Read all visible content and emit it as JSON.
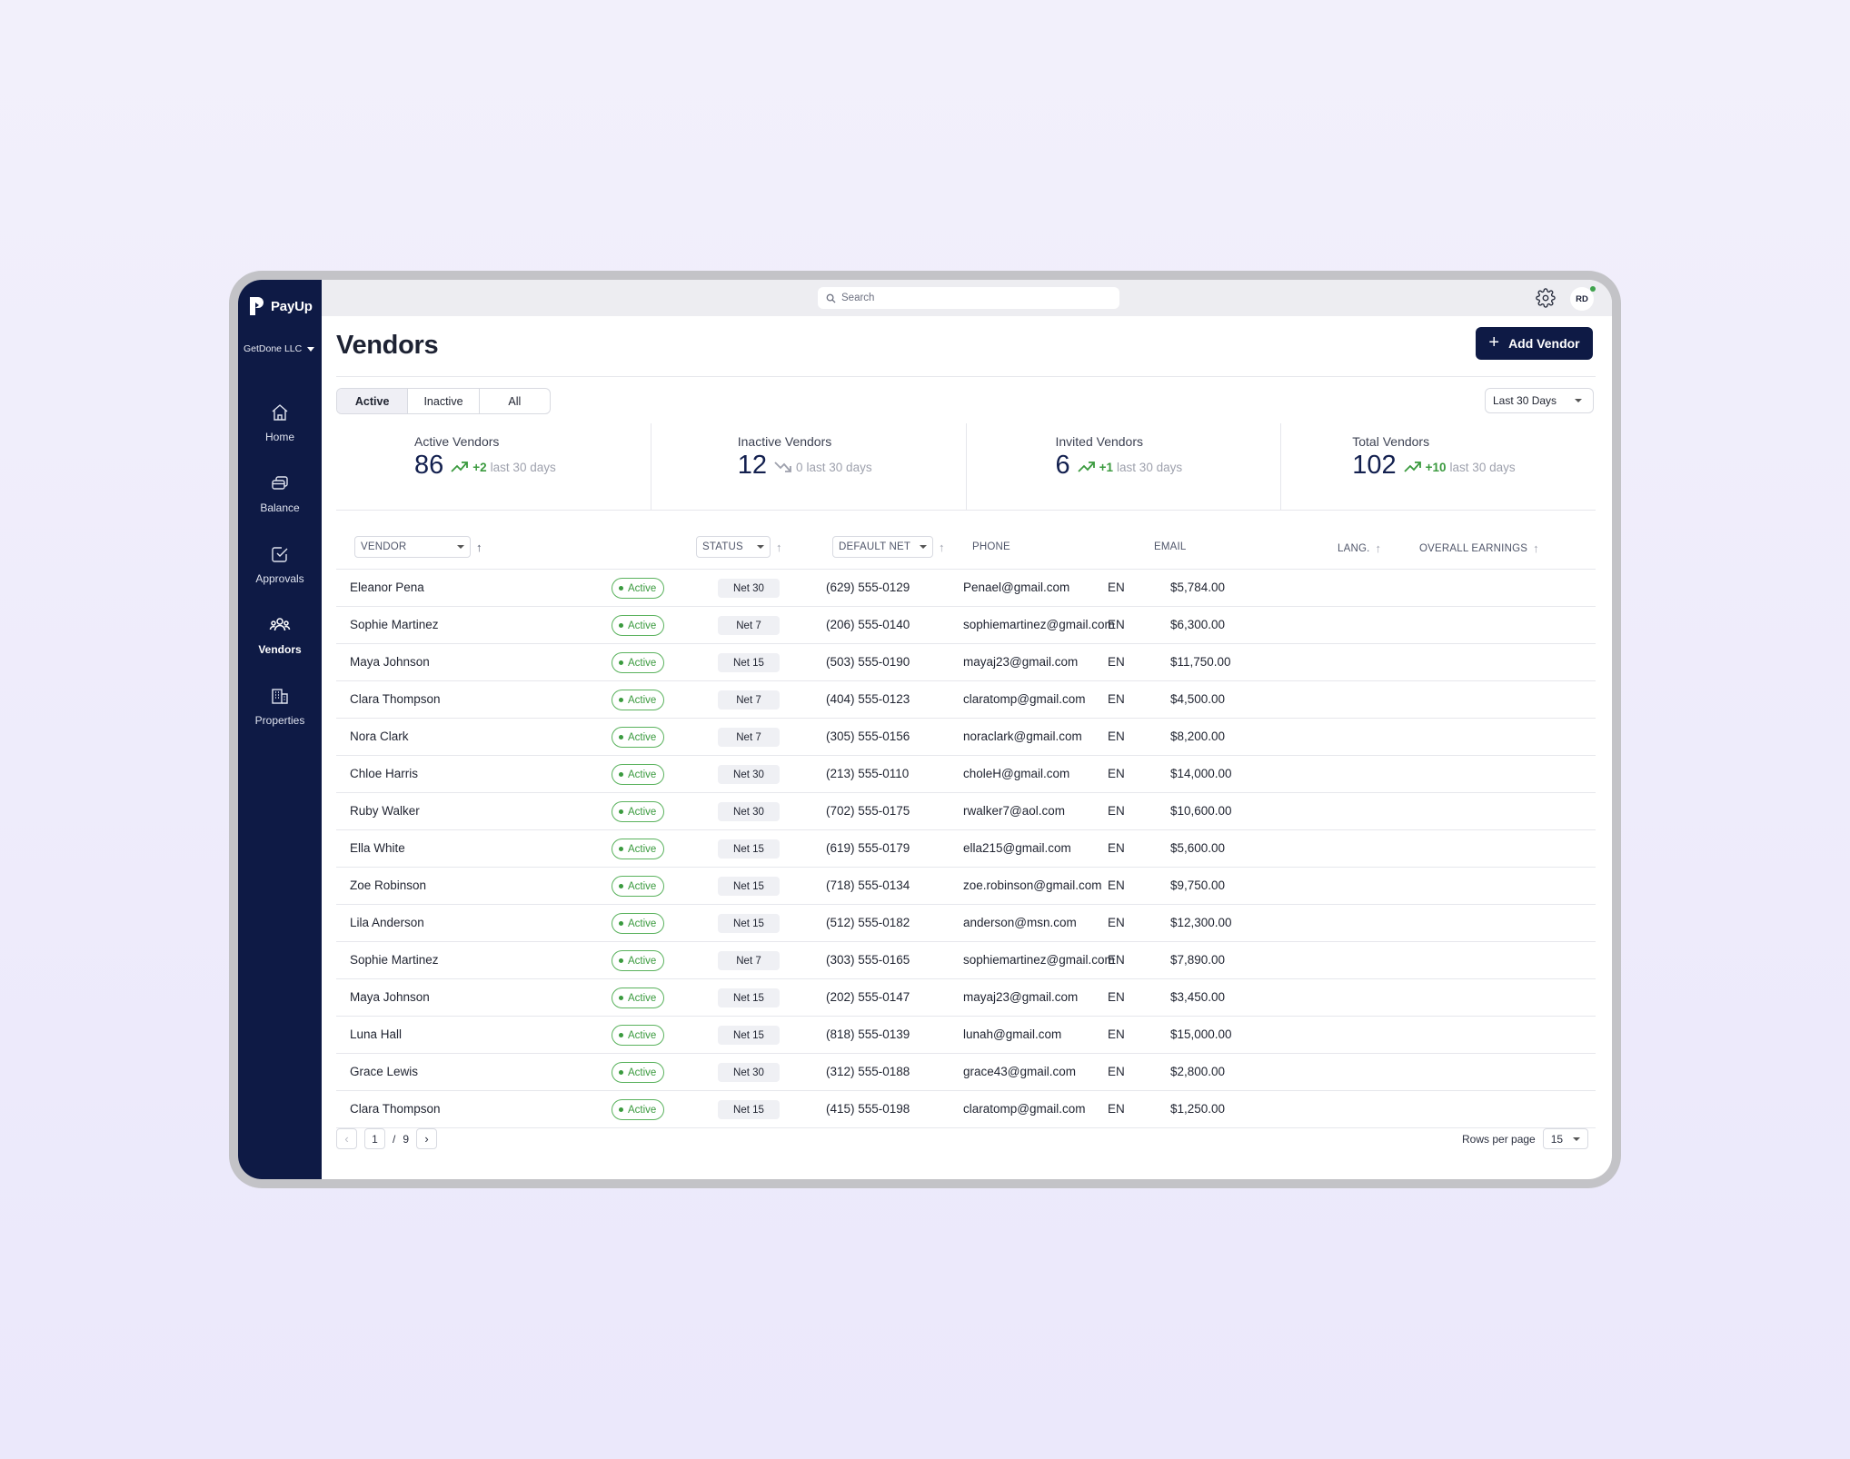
{
  "app": {
    "brand": "PayUp",
    "company": "GetDone LLC",
    "search_placeholder": "Search",
    "avatar_initials": "RD",
    "colors": {
      "sidebar": "#0e1a45",
      "accent": "#13204f",
      "success": "#3a9a3e"
    }
  },
  "sidebar": {
    "items": [
      {
        "label": "Home",
        "icon": "home-icon"
      },
      {
        "label": "Balance",
        "icon": "balance-icon"
      },
      {
        "label": "Approvals",
        "icon": "approvals-icon"
      },
      {
        "label": "Vendors",
        "icon": "vendors-icon"
      },
      {
        "label": "Properties",
        "icon": "properties-icon"
      }
    ]
  },
  "page": {
    "title": "Vendors",
    "add_button": "Add Vendor",
    "tabs": [
      "Active",
      "Inactive",
      "All"
    ],
    "active_tab": "Active",
    "date_range": "Last 30 Days"
  },
  "stats": [
    {
      "label": "Active Vendors",
      "value": "86",
      "delta": "+2",
      "period": "last 30 days",
      "trend": "up"
    },
    {
      "label": "Inactive Vendors",
      "value": "12",
      "delta": "0",
      "period": "last 30 days",
      "trend": "down"
    },
    {
      "label": "Invited Vendors",
      "value": "6",
      "delta": "+1",
      "period": "last 30 days",
      "trend": "up"
    },
    {
      "label": "Total Vendors",
      "value": "102",
      "delta": "+10",
      "period": "last 30 days",
      "trend": "up"
    }
  ],
  "table": {
    "headers": {
      "vendor": "VENDOR",
      "status": "STATUS",
      "default_net": "DEFAULT NET",
      "phone": "PHONE",
      "email": "EMAIL",
      "lang": "LANG.",
      "earnings": "OVERALL EARNINGS"
    },
    "rows": [
      {
        "vendor": "Eleanor Pena",
        "status": "Active",
        "net": "Net 30",
        "phone": "(629) 555-0129",
        "email": "Penael@gmail.com",
        "lang": "EN",
        "earnings": "$5,784.00"
      },
      {
        "vendor": "Sophie Martinez",
        "status": "Active",
        "net": "Net 7",
        "phone": "(206) 555-0140",
        "email": "sophiemartinez@gmail.com",
        "lang": "EN",
        "earnings": "$6,300.00"
      },
      {
        "vendor": "Maya Johnson",
        "status": "Active",
        "net": "Net 15",
        "phone": "(503) 555-0190",
        "email": "mayaj23@gmail.com",
        "lang": "EN",
        "earnings": "$11,750.00"
      },
      {
        "vendor": "Clara Thompson",
        "status": "Active",
        "net": "Net 7",
        "phone": "(404) 555-0123",
        "email": "claratomp@gmail.com",
        "lang": "EN",
        "earnings": "$4,500.00"
      },
      {
        "vendor": "Nora Clark",
        "status": "Active",
        "net": "Net 7",
        "phone": "(305) 555-0156",
        "email": "noraclark@gmail.com",
        "lang": "EN",
        "earnings": "$8,200.00"
      },
      {
        "vendor": "Chloe Harris",
        "status": "Active",
        "net": "Net 30",
        "phone": "(213) 555-0110",
        "email": "choleH@gmail.com",
        "lang": "EN",
        "earnings": "$14,000.00"
      },
      {
        "vendor": "Ruby Walker",
        "status": "Active",
        "net": "Net 30",
        "phone": "(702) 555-0175",
        "email": "rwalker7@aol.com",
        "lang": "EN",
        "earnings": "$10,600.00"
      },
      {
        "vendor": "Ella White",
        "status": "Active",
        "net": "Net 15",
        "phone": "(619) 555-0179",
        "email": "ella215@gmail.com",
        "lang": "EN",
        "earnings": "$5,600.00"
      },
      {
        "vendor": "Zoe Robinson",
        "status": "Active",
        "net": "Net 15",
        "phone": "(718) 555-0134",
        "email": "zoe.robinson@gmail.com",
        "lang": "EN",
        "earnings": "$9,750.00"
      },
      {
        "vendor": "Lila Anderson",
        "status": "Active",
        "net": "Net 15",
        "phone": "(512) 555-0182",
        "email": "anderson@msn.com",
        "lang": "EN",
        "earnings": "$12,300.00"
      },
      {
        "vendor": "Sophie Martinez",
        "status": "Active",
        "net": "Net 7",
        "phone": "(303) 555-0165",
        "email": "sophiemartinez@gmail.com",
        "lang": "EN",
        "earnings": "$7,890.00"
      },
      {
        "vendor": "Maya Johnson",
        "status": "Active",
        "net": "Net 15",
        "phone": "(202) 555-0147",
        "email": "mayaj23@gmail.com",
        "lang": "EN",
        "earnings": "$3,450.00"
      },
      {
        "vendor": "Luna Hall",
        "status": "Active",
        "net": "Net 15",
        "phone": "(818) 555-0139",
        "email": "lunah@gmail.com",
        "lang": "EN",
        "earnings": "$15,000.00"
      },
      {
        "vendor": "Grace Lewis",
        "status": "Active",
        "net": "Net 30",
        "phone": "(312) 555-0188",
        "email": "grace43@gmail.com",
        "lang": "EN",
        "earnings": "$2,800.00"
      },
      {
        "vendor": "Clara Thompson",
        "status": "Active",
        "net": "Net 15",
        "phone": "(415) 555-0198",
        "email": "claratomp@gmail.com",
        "lang": "EN",
        "earnings": "$1,250.00"
      }
    ]
  },
  "pagination": {
    "current_page": "1",
    "separator": "/",
    "total_pages": "9",
    "rows_per_page_label": "Rows per page",
    "rows_per_page": "15"
  }
}
